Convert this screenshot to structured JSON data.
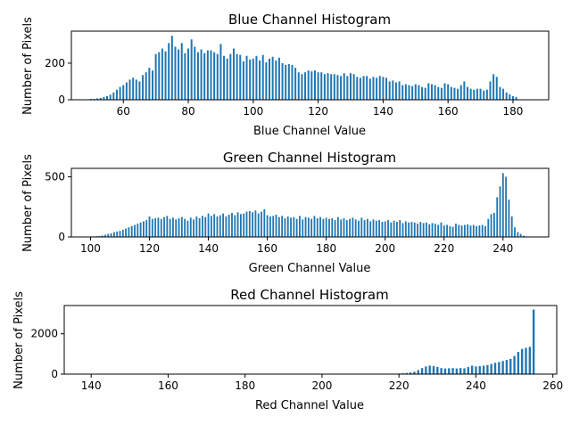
{
  "chart_data": [
    {
      "type": "bar",
      "title": "Blue Channel Histogram",
      "xlabel": "Blue Channel Value",
      "ylabel": "Number of Pixels",
      "xlim": [
        44,
        191
      ],
      "ylim": [
        0,
        375
      ],
      "xticks": [
        60,
        80,
        100,
        120,
        140,
        160,
        180
      ],
      "yticks": [
        0,
        200
      ],
      "grid": false,
      "color": "#1f77b4",
      "x": [
        50,
        51,
        52,
        53,
        54,
        55,
        56,
        57,
        58,
        59,
        60,
        61,
        62,
        63,
        64,
        65,
        66,
        67,
        68,
        69,
        70,
        71,
        72,
        73,
        74,
        75,
        76,
        77,
        78,
        79,
        80,
        81,
        82,
        83,
        84,
        85,
        86,
        87,
        88,
        89,
        90,
        91,
        92,
        93,
        94,
        95,
        96,
        97,
        98,
        99,
        100,
        101,
        102,
        103,
        104,
        105,
        106,
        107,
        108,
        109,
        110,
        111,
        112,
        113,
        114,
        115,
        116,
        117,
        118,
        119,
        120,
        121,
        122,
        123,
        124,
        125,
        126,
        127,
        128,
        129,
        130,
        131,
        132,
        133,
        134,
        135,
        136,
        137,
        138,
        139,
        140,
        141,
        142,
        143,
        144,
        145,
        146,
        147,
        148,
        149,
        150,
        151,
        152,
        153,
        154,
        155,
        156,
        157,
        158,
        159,
        160,
        161,
        162,
        163,
        164,
        165,
        166,
        167,
        168,
        169,
        170,
        171,
        172,
        173,
        174,
        175,
        176,
        177,
        178,
        179,
        180,
        181
      ],
      "values": [
        5,
        5,
        8,
        10,
        15,
        20,
        28,
        40,
        55,
        70,
        80,
        95,
        110,
        120,
        110,
        100,
        135,
        150,
        175,
        160,
        250,
        260,
        280,
        265,
        310,
        350,
        290,
        275,
        310,
        255,
        280,
        330,
        290,
        260,
        275,
        255,
        270,
        270,
        260,
        250,
        305,
        240,
        225,
        250,
        280,
        250,
        245,
        210,
        240,
        220,
        225,
        240,
        215,
        245,
        205,
        225,
        235,
        215,
        230,
        200,
        190,
        195,
        190,
        175,
        150,
        140,
        150,
        160,
        155,
        160,
        150,
        150,
        140,
        145,
        140,
        140,
        135,
        130,
        145,
        130,
        145,
        140,
        125,
        120,
        130,
        130,
        115,
        125,
        120,
        130,
        125,
        120,
        100,
        105,
        95,
        100,
        80,
        85,
        80,
        75,
        85,
        80,
        70,
        65,
        90,
        85,
        80,
        70,
        65,
        90,
        85,
        70,
        65,
        60,
        80,
        100,
        70,
        60,
        55,
        60,
        60,
        50,
        55,
        100,
        140,
        125,
        70,
        60,
        40,
        30,
        20,
        15
      ]
    },
    {
      "type": "bar",
      "title": "Green Channel Histogram",
      "xlabel": "Green Channel Value",
      "ylabel": "Number of Pixels",
      "xlim": [
        93.5,
        255.5
      ],
      "ylim": [
        0,
        570
      ],
      "xticks": [
        100,
        120,
        140,
        160,
        180,
        200,
        220,
        240
      ],
      "yticks": [
        0,
        500
      ],
      "grid": false,
      "color": "#1f77b4",
      "x": [
        100,
        101,
        102,
        103,
        104,
        105,
        106,
        107,
        108,
        109,
        110,
        111,
        112,
        113,
        114,
        115,
        116,
        117,
        118,
        119,
        120,
        121,
        122,
        123,
        124,
        125,
        126,
        127,
        128,
        129,
        130,
        131,
        132,
        133,
        134,
        135,
        136,
        137,
        138,
        139,
        140,
        141,
        142,
        143,
        144,
        145,
        146,
        147,
        148,
        149,
        150,
        151,
        152,
        153,
        154,
        155,
        156,
        157,
        158,
        159,
        160,
        161,
        162,
        163,
        164,
        165,
        166,
        167,
        168,
        169,
        170,
        171,
        172,
        173,
        174,
        175,
        176,
        177,
        178,
        179,
        180,
        181,
        182,
        183,
        184,
        185,
        186,
        187,
        188,
        189,
        190,
        191,
        192,
        193,
        194,
        195,
        196,
        197,
        198,
        199,
        200,
        201,
        202,
        203,
        204,
        205,
        206,
        207,
        208,
        209,
        210,
        211,
        212,
        213,
        214,
        215,
        216,
        217,
        218,
        219,
        220,
        221,
        222,
        223,
        224,
        225,
        226,
        227,
        228,
        229,
        230,
        231,
        232,
        233,
        234,
        235,
        236,
        237,
        238,
        239,
        240,
        241,
        242,
        243,
        244,
        245,
        246,
        247,
        248
      ],
      "values": [
        3,
        5,
        6,
        8,
        12,
        18,
        25,
        30,
        40,
        45,
        50,
        60,
        70,
        80,
        90,
        100,
        110,
        120,
        130,
        140,
        170,
        150,
        155,
        160,
        150,
        165,
        175,
        150,
        160,
        145,
        155,
        165,
        150,
        135,
        160,
        145,
        170,
        155,
        175,
        165,
        195,
        175,
        190,
        170,
        180,
        195,
        170,
        185,
        200,
        180,
        205,
        190,
        195,
        210,
        215,
        205,
        220,
        195,
        210,
        230,
        180,
        170,
        175,
        185,
        165,
        175,
        155,
        170,
        160,
        165,
        150,
        175,
        145,
        165,
        160,
        150,
        175,
        155,
        165,
        150,
        160,
        150,
        155,
        140,
        165,
        145,
        155,
        140,
        150,
        160,
        145,
        135,
        160,
        140,
        150,
        130,
        145,
        135,
        140,
        125,
        130,
        140,
        120,
        135,
        125,
        140,
        115,
        130,
        120,
        125,
        120,
        110,
        125,
        115,
        120,
        105,
        115,
        110,
        100,
        120,
        95,
        100,
        90,
        85,
        110,
        100,
        95,
        100,
        105,
        95,
        100,
        90,
        95,
        100,
        90,
        150,
        190,
        200,
        330,
        420,
        530,
        500,
        310,
        170,
        80,
        40,
        25,
        10,
        5
      ]
    },
    {
      "type": "bar",
      "title": "Red Channel Histogram",
      "xlabel": "Red Channel Value",
      "ylabel": "Number of Pixels",
      "xlim": [
        133,
        261
      ],
      "ylim": [
        0,
        3400
      ],
      "xticks": [
        140,
        160,
        180,
        200,
        220,
        240,
        260
      ],
      "yticks": [
        0,
        2000
      ],
      "grid": false,
      "color": "#1f77b4",
      "x": [
        138,
        139,
        140,
        141,
        142,
        143,
        144,
        145,
        146,
        147,
        148,
        149,
        150,
        151,
        152,
        153,
        154,
        155,
        156,
        157,
        158,
        159,
        160,
        161,
        162,
        163,
        164,
        165,
        166,
        167,
        168,
        169,
        170,
        171,
        172,
        173,
        174,
        175,
        176,
        177,
        178,
        179,
        180,
        181,
        182,
        183,
        184,
        185,
        186,
        187,
        188,
        189,
        190,
        191,
        192,
        193,
        194,
        195,
        196,
        197,
        198,
        199,
        200,
        201,
        202,
        203,
        204,
        205,
        206,
        207,
        208,
        209,
        210,
        211,
        212,
        213,
        214,
        215,
        216,
        217,
        218,
        219,
        220,
        221,
        222,
        223,
        224,
        225,
        226,
        227,
        228,
        229,
        230,
        231,
        232,
        233,
        234,
        235,
        236,
        237,
        238,
        239,
        240,
        241,
        242,
        243,
        244,
        245,
        246,
        247,
        248,
        249,
        250,
        251,
        252,
        253,
        254,
        255
      ],
      "values": [
        2,
        1,
        2,
        2,
        1,
        2,
        1,
        2,
        1,
        2,
        1,
        2,
        1,
        2,
        1,
        2,
        2,
        1,
        2,
        1,
        2,
        1,
        2,
        1,
        2,
        1,
        2,
        1,
        2,
        1,
        2,
        1,
        2,
        1,
        2,
        1,
        2,
        1,
        2,
        1,
        2,
        1,
        2,
        1,
        2,
        1,
        2,
        1,
        2,
        1,
        2,
        1,
        2,
        1,
        2,
        1,
        2,
        1,
        2,
        1,
        2,
        1,
        2,
        1,
        2,
        1,
        2,
        1,
        2,
        1,
        2,
        1,
        2,
        3,
        3,
        4,
        5,
        6,
        8,
        10,
        15,
        20,
        30,
        40,
        60,
        80,
        120,
        200,
        300,
        380,
        420,
        400,
        360,
        300,
        280,
        290,
        300,
        280,
        300,
        290,
        350,
        420,
        380,
        400,
        420,
        450,
        500,
        560,
        600,
        650,
        700,
        750,
        900,
        1100,
        1250,
        1300,
        1350,
        3200
      ]
    }
  ]
}
